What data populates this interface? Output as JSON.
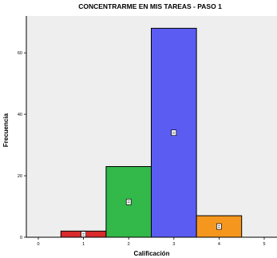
{
  "chart_data": {
    "type": "bar",
    "title": "CONCENTRARME EN MIS TAREAS - PASO 1",
    "xlabel": "Calificación",
    "ylabel": "Frecuencia",
    "x_ticks": [
      "0",
      "1",
      "2",
      "3",
      "4",
      "5"
    ],
    "y_ticks": [
      "0",
      "20",
      "40",
      "60"
    ],
    "xlim": [
      0,
      5
    ],
    "ylim": [
      0,
      72
    ],
    "grid": false,
    "legend": "none",
    "plot_background": "#eeeeee",
    "bars": [
      {
        "category": "1",
        "value": 2,
        "color": "#d92b2b"
      },
      {
        "category": "2",
        "value": 23,
        "color": "#33b84a"
      },
      {
        "category": "3",
        "value": 68,
        "color": "#5b5cf2"
      },
      {
        "category": "4",
        "value": 7,
        "color": "#f5961e"
      }
    ]
  }
}
